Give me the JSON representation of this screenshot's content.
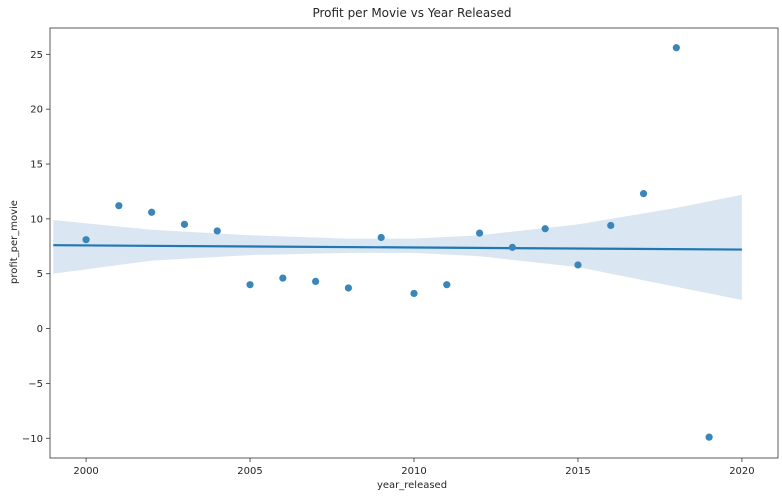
{
  "chart_data": {
    "type": "scatter",
    "title": "Profit per Movie vs Year Released",
    "xlabel": "year_released",
    "ylabel": "profit_per_movie",
    "xlim": [
      1998.9,
      2021.1
    ],
    "ylim": [
      -11.8,
      27.4
    ],
    "xticks": [
      2000,
      2005,
      2010,
      2015,
      2020
    ],
    "yticks": [
      -10,
      -5,
      0,
      5,
      10,
      15,
      20,
      25
    ],
    "grid": false,
    "legend": "none",
    "colors": {
      "points": "#3a86b8",
      "line": "#1f77b4",
      "band": "#aec9e3"
    },
    "series": [
      {
        "x": [
          2000,
          2001,
          2002,
          2003,
          2004,
          2005,
          2006,
          2007,
          2008,
          2009,
          2010,
          2011,
          2012,
          2013,
          2014,
          2015,
          2016,
          2017,
          2018,
          2019
        ],
        "y": [
          8.1,
          11.2,
          10.6,
          9.5,
          8.9,
          4.0,
          4.6,
          4.3,
          3.7,
          8.3,
          3.2,
          4.0,
          8.7,
          7.4,
          9.1,
          5.8,
          9.4,
          12.3,
          25.6,
          -9.9
        ]
      }
    ],
    "regression": {
      "x": [
        1999,
        2020
      ],
      "y": [
        7.6,
        7.2
      ],
      "ci_x": [
        1999,
        2002,
        2005,
        2008,
        2010,
        2012,
        2015,
        2018,
        2020
      ],
      "ci_upper": [
        9.9,
        9.0,
        8.5,
        8.2,
        8.2,
        8.5,
        9.5,
        11.0,
        12.2
      ],
      "ci_lower": [
        5.0,
        6.2,
        6.7,
        6.9,
        6.9,
        6.6,
        5.6,
        3.8,
        2.6
      ]
    }
  }
}
